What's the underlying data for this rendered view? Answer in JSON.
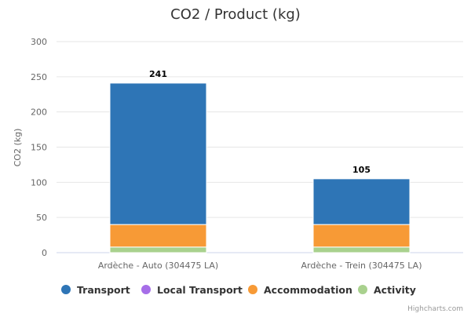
{
  "chart_data": {
    "type": "bar",
    "stacked": true,
    "title": "CO2 / Product (kg)",
    "ylabel": "CO2 (kg)",
    "xlabel": "",
    "ylim": [
      0,
      300
    ],
    "yticks": [
      0,
      50,
      100,
      150,
      200,
      250,
      300
    ],
    "categories": [
      "Ardèche - Auto (304475 LA)",
      "Ardèche - Trein (304475 LA)"
    ],
    "series": [
      {
        "name": "Activity",
        "color": "#a9d18e",
        "values": [
          8,
          8
        ]
      },
      {
        "name": "Accommodation",
        "color": "#f79a36",
        "values": [
          32,
          32
        ]
      },
      {
        "name": "Local Transport",
        "color": "#a66ee8",
        "values": [
          0,
          0
        ]
      },
      {
        "name": "Transport",
        "color": "#2e75b6",
        "values": [
          201,
          65
        ]
      }
    ],
    "totals": [
      241,
      105
    ],
    "legend_order": [
      "Transport",
      "Local Transport",
      "Accommodation",
      "Activity"
    ],
    "legend_position": "bottom",
    "grid": true
  },
  "credits": "Highcharts.com"
}
